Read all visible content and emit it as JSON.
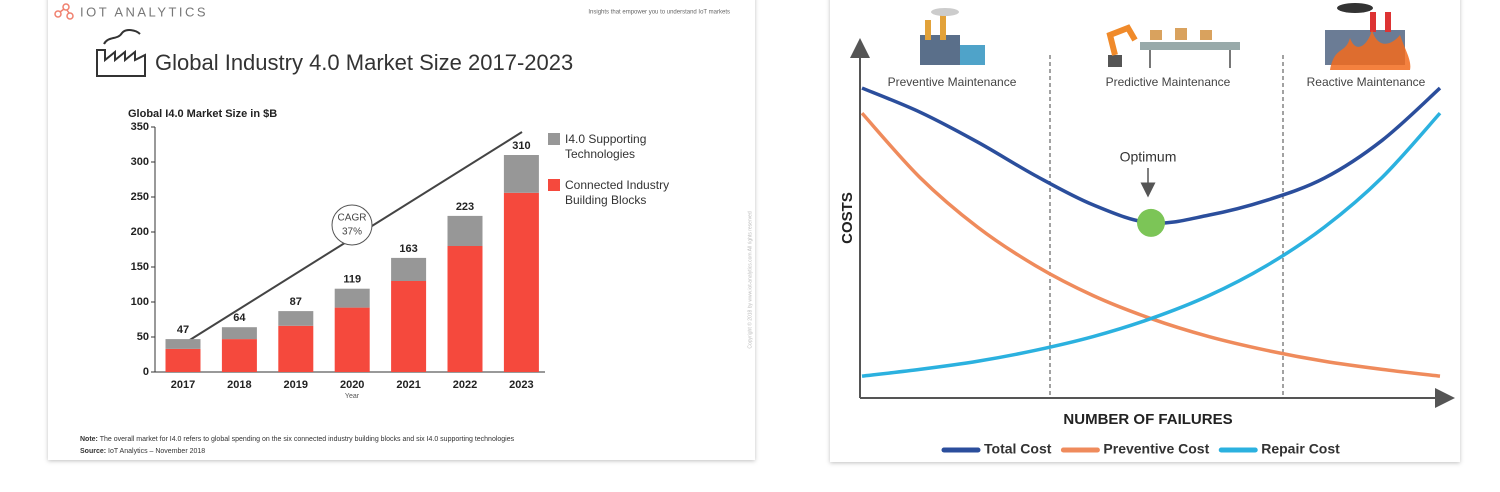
{
  "chart_data": [
    {
      "type": "stacked-bar",
      "brand": "IOT ANALYTICS",
      "tagline": "Insights that empower you to understand IoT markets",
      "title": "Global Industry 4.0 Market Size 2017-2023",
      "y_axis_title": "Global I4.0 Market Size in $B",
      "x_axis_title": "Year",
      "annotation": [
        "CAGR",
        "37%"
      ],
      "categories": [
        "2017",
        "2018",
        "2019",
        "2020",
        "2021",
        "2022",
        "2023"
      ],
      "series": [
        {
          "name": "Connected Industry Building Blocks",
          "color": "#f5493d",
          "values": [
            33,
            47,
            66,
            92,
            130,
            180,
            256
          ]
        },
        {
          "name": "I4.0 Supporting Technologies",
          "color": "#979797",
          "values": [
            14,
            17,
            21,
            27,
            33,
            43,
            54
          ]
        }
      ],
      "totals": [
        47,
        64,
        87,
        119,
        163,
        223,
        310
      ],
      "ylim": [
        0,
        350
      ],
      "yticks": [
        0,
        50,
        100,
        150,
        200,
        250,
        300,
        350
      ],
      "note_label": "Note:",
      "note": "The overall market for I4.0 refers to global spending on the six connected industry building blocks and six I4.0 supporting technologies",
      "source_label": "Source:",
      "source": "IoT Analytics – November 2018",
      "copyright": "Copyright © 2018 by www.iot-analytics.com All rights reserved"
    },
    {
      "type": "line",
      "y_axis_title": "COSTS",
      "x_axis_title": "NUMBER OF FAILURES",
      "phases": [
        "Preventive Maintenance",
        "Predictive Maintenance",
        "Reactive Maintenance"
      ],
      "annotation": "Optimum",
      "x": [
        0,
        1,
        2,
        3,
        4,
        5,
        6,
        7,
        8,
        9,
        10
      ],
      "xlim": [
        0,
        10
      ],
      "ylim": [
        0,
        100
      ],
      "series": [
        {
          "name": "Total Cost",
          "color": "#2b4e9c",
          "values": [
            87.8,
            81,
            72.5,
            63,
            54.7,
            49.6,
            51.8,
            56,
            62.3,
            73,
            87.8
          ]
        },
        {
          "name": "Preventive Cost",
          "color": "#ef8b5c",
          "values": [
            80.7,
            62.5,
            48.4,
            37.5,
            29.0,
            22.5,
            17.4,
            13.5,
            10.4,
            8.1,
            6.2
          ]
        },
        {
          "name": "Repair Cost",
          "color": "#2bb1df",
          "values": [
            6.2,
            8.1,
            10.4,
            13.5,
            17.4,
            22.5,
            29.0,
            37.5,
            48.4,
            62.5,
            80.7
          ]
        }
      ]
    }
  ]
}
